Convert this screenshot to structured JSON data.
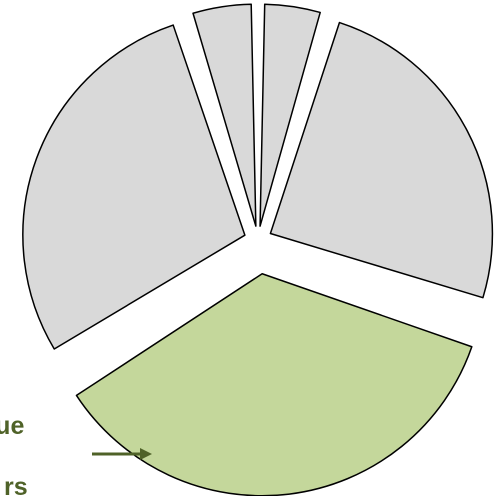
{
  "chart_data": {
    "type": "pie",
    "title": "",
    "exploded": true,
    "highlight_color": "#c4d79b",
    "base_color": "#d9d9d9",
    "outline_color": "#000000",
    "slices": [
      {
        "value": 4.7,
        "highlighted": false
      },
      {
        "value": 25.3,
        "highlighted": false
      },
      {
        "value": 36.1,
        "highlighted": true
      },
      {
        "value": 29.0,
        "highlighted": false
      },
      {
        "value": 4.9,
        "highlighted": false
      }
    ],
    "start_angle_deg": 0,
    "direction": "clockwise"
  },
  "callout": {
    "line1": "enue",
    "line2": "rs",
    "color": "#4f6228",
    "arrow_icon": "right-arrow-icon"
  }
}
